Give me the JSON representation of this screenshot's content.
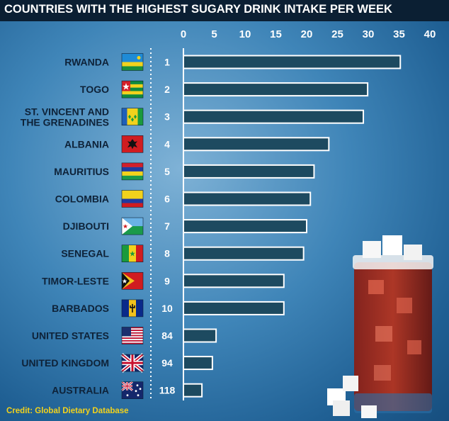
{
  "title": "COUNTRIES WITH THE HIGHEST SUGARY DRINK INTAKE PER WEEK",
  "credit": "Credit: Global Dietary Database",
  "colors": {
    "bar_fill": "#1d4a60",
    "bar_stroke": "#ffffff",
    "title_bg": "#0b1f33",
    "credit": "#f2d21c"
  },
  "chart_data": {
    "type": "bar",
    "orientation": "horizontal",
    "title": "COUNTRIES WITH THE HIGHEST SUGARY DRINK INTAKE PER WEEK",
    "xlim": [
      0,
      40
    ],
    "x_ticks": [
      "0",
      "5",
      "10",
      "15",
      "20",
      "25",
      "30",
      "35",
      "40"
    ],
    "grid": false,
    "rows": [
      {
        "country": [
          "RWANDA"
        ],
        "rank": "1",
        "value": 35.2,
        "flag": "rwanda-flag"
      },
      {
        "country": [
          "TOGO"
        ],
        "rank": "2",
        "value": 29.9,
        "flag": "togo-flag"
      },
      {
        "country": [
          "ST. VINCENT AND",
          "THE GRENADINES"
        ],
        "rank": "3",
        "value": 29.2,
        "flag": "st-vincent-flag"
      },
      {
        "country": [
          "ALBANIA"
        ],
        "rank": "4",
        "value": 23.6,
        "flag": "albania-flag"
      },
      {
        "country": [
          "MAURITIUS"
        ],
        "rank": "5",
        "value": 21.2,
        "flag": "mauritius-flag"
      },
      {
        "country": [
          "COLOMBIA"
        ],
        "rank": "6",
        "value": 20.6,
        "flag": "colombia-flag"
      },
      {
        "country": [
          "DJIBOUTI"
        ],
        "rank": "7",
        "value": 20.0,
        "flag": "djibouti-flag"
      },
      {
        "country": [
          "SENEGAL"
        ],
        "rank": "8",
        "value": 19.5,
        "flag": "senegal-flag"
      },
      {
        "country": [
          "TIMOR-LESTE"
        ],
        "rank": "9",
        "value": 16.3,
        "flag": "timor-leste-flag"
      },
      {
        "country": [
          "BARBADOS"
        ],
        "rank": "10",
        "value": 16.3,
        "flag": "barbados-flag"
      },
      {
        "country": [
          "UNITED STATES"
        ],
        "rank": "84",
        "value": 5.3,
        "flag": "usa-flag"
      },
      {
        "country": [
          "UNITED KINGDOM"
        ],
        "rank": "94",
        "value": 4.7,
        "flag": "uk-flag"
      },
      {
        "country": [
          "AUSTRALIA"
        ],
        "rank": "118",
        "value": 3.0,
        "flag": "australia-flag"
      }
    ]
  }
}
